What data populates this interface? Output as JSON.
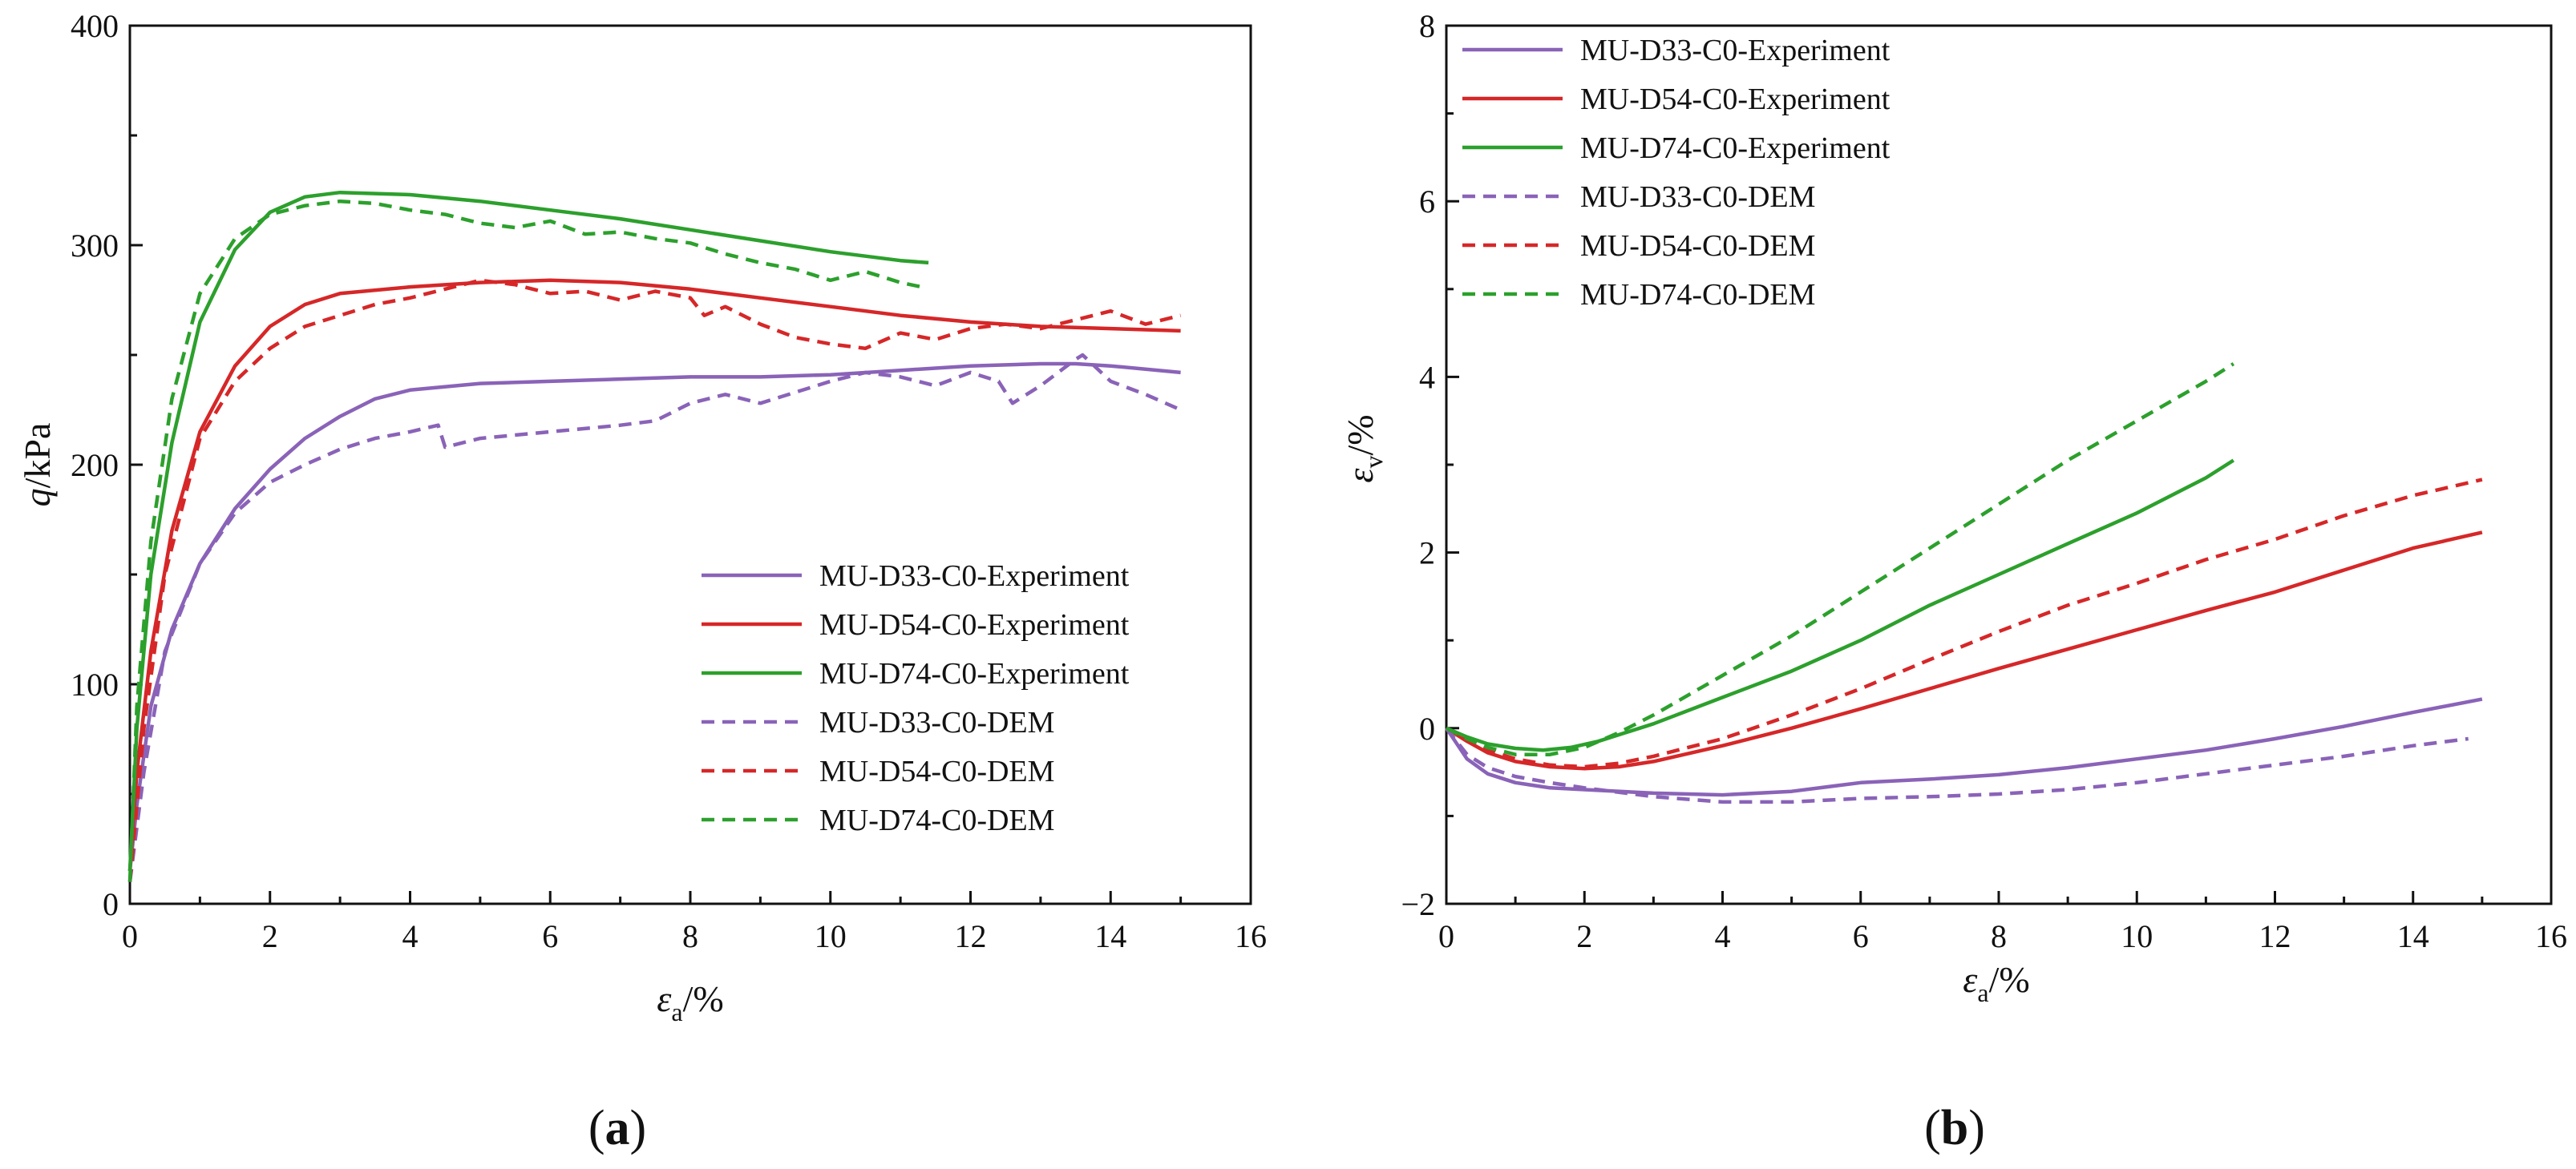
{
  "colors": {
    "D33": "#8a63b8",
    "D54": "#d62728",
    "D74": "#2ca02c",
    "axis": "#111111"
  },
  "chart_data": [
    {
      "panel": "a",
      "type": "line",
      "xlabel_symbol": "ε",
      "xlabel_sub": "a",
      "xlabel_unit": "/%",
      "ylabel_symbol": "q",
      "ylabel_unit": "/kPa",
      "xlim": [
        0,
        16
      ],
      "ylim": [
        0,
        400
      ],
      "xticks": [
        0,
        2,
        4,
        6,
        8,
        10,
        12,
        14,
        16
      ],
      "yticks": [
        0,
        100,
        200,
        300,
        400
      ],
      "grid": false,
      "legend_position": "bottom-right",
      "series": [
        {
          "name": "MU-D33-C0-Experiment",
          "group": "D33",
          "style": "solid",
          "x": [
            0,
            0.1,
            0.3,
            0.6,
            1.0,
            1.5,
            2.0,
            2.5,
            3.0,
            3.5,
            4.0,
            5.0,
            6.0,
            7.0,
            8.0,
            9.0,
            10.0,
            11.0,
            12.0,
            13.0,
            13.5,
            14.0,
            15.0
          ],
          "y": [
            15,
            45,
            90,
            125,
            155,
            180,
            198,
            212,
            222,
            230,
            234,
            237,
            238,
            239,
            240,
            240,
            241,
            243,
            245,
            246,
            246,
            245,
            242
          ]
        },
        {
          "name": "MU-D54-C0-Experiment",
          "group": "D54",
          "style": "solid",
          "x": [
            0,
            0.1,
            0.3,
            0.6,
            1.0,
            1.5,
            2.0,
            2.5,
            3.0,
            4.0,
            5.0,
            6.0,
            7.0,
            8.0,
            9.0,
            10.0,
            11.0,
            12.0,
            13.0,
            14.0,
            15.0
          ],
          "y": [
            15,
            60,
            115,
            170,
            215,
            245,
            263,
            273,
            278,
            281,
            283,
            284,
            283,
            280,
            276,
            272,
            268,
            265,
            263,
            262,
            261
          ]
        },
        {
          "name": "MU-D74-C0-Experiment",
          "group": "D74",
          "style": "solid",
          "x": [
            0,
            0.1,
            0.3,
            0.6,
            1.0,
            1.5,
            2.0,
            2.5,
            3.0,
            4.0,
            5.0,
            6.0,
            7.0,
            8.0,
            9.0,
            10.0,
            11.0,
            11.4
          ],
          "y": [
            15,
            80,
            150,
            210,
            265,
            298,
            315,
            322,
            324,
            323,
            320,
            316,
            312,
            307,
            302,
            297,
            293,
            292
          ]
        },
        {
          "name": "MU-D33-C0-DEM",
          "group": "D33",
          "style": "dashed",
          "x": [
            0,
            0.2,
            0.5,
            1.0,
            1.5,
            2.0,
            2.5,
            3.0,
            3.5,
            4.0,
            4.4,
            4.5,
            5.0,
            6.0,
            7.0,
            7.5,
            8.0,
            8.5,
            9.0,
            9.5,
            10.0,
            10.5,
            11.0,
            11.5,
            12.0,
            12.4,
            12.6,
            13.0,
            13.5,
            13.6,
            14.0,
            14.5,
            15.0
          ],
          "y": [
            10,
            60,
            115,
            155,
            178,
            192,
            200,
            207,
            212,
            215,
            218,
            208,
            212,
            215,
            218,
            220,
            228,
            232,
            228,
            233,
            238,
            242,
            240,
            236,
            242,
            238,
            228,
            236,
            248,
            250,
            238,
            232,
            225
          ]
        },
        {
          "name": "MU-D54-C0-DEM",
          "group": "D54",
          "style": "dashed",
          "x": [
            0,
            0.2,
            0.5,
            1.0,
            1.5,
            2.0,
            2.5,
            3.0,
            3.5,
            4.0,
            4.5,
            5.0,
            5.5,
            6.0,
            6.5,
            7.0,
            7.5,
            8.0,
            8.2,
            8.5,
            9.0,
            9.5,
            10.0,
            10.5,
            11.0,
            11.5,
            12.0,
            12.5,
            13.0,
            13.5,
            14.0,
            14.5,
            15.0
          ],
          "y": [
            10,
            80,
            150,
            212,
            238,
            253,
            263,
            268,
            273,
            276,
            280,
            284,
            282,
            278,
            279,
            275,
            279,
            276,
            268,
            272,
            264,
            258,
            255,
            253,
            260,
            257,
            262,
            264,
            262,
            266,
            270,
            264,
            268
          ]
        },
        {
          "name": "MU-D74-C0-DEM",
          "group": "D74",
          "style": "dashed",
          "x": [
            0,
            0.1,
            0.3,
            0.6,
            1.0,
            1.5,
            2.0,
            2.5,
            3.0,
            3.5,
            4.0,
            4.5,
            5.0,
            5.5,
            6.0,
            6.5,
            7.0,
            7.5,
            8.0,
            8.5,
            9.0,
            9.5,
            10.0,
            10.5,
            11.0,
            11.3
          ],
          "y": [
            10,
            90,
            165,
            230,
            278,
            303,
            314,
            318,
            320,
            319,
            316,
            314,
            310,
            308,
            311,
            305,
            306,
            303,
            301,
            296,
            292,
            289,
            284,
            288,
            283,
            281
          ]
        }
      ]
    },
    {
      "panel": "b",
      "type": "line",
      "xlabel_symbol": "ε",
      "xlabel_sub": "a",
      "xlabel_unit": "/%",
      "ylabel_symbol": "ε",
      "ylabel_sub": "v",
      "ylabel_unit": "/%",
      "xlim": [
        0,
        16
      ],
      "ylim": [
        -2,
        8
      ],
      "xticks": [
        0,
        2,
        4,
        6,
        8,
        10,
        12,
        14,
        16
      ],
      "yticks": [
        -2,
        0,
        2,
        4,
        6,
        8
      ],
      "ytick_labels": [
        "−2",
        "0",
        "2",
        "4",
        "6",
        "8"
      ],
      "grid": false,
      "legend_position": "top-left",
      "series": [
        {
          "name": "MU-D33-C0-Experiment",
          "group": "D33",
          "style": "solid",
          "x": [
            0,
            0.3,
            0.6,
            1.0,
            1.5,
            2.0,
            3.0,
            4.0,
            5.0,
            6.0,
            7.0,
            8.0,
            9.0,
            10.0,
            11.0,
            12.0,
            13.0,
            14.0,
            15.0
          ],
          "y": [
            0,
            -0.35,
            -0.52,
            -0.62,
            -0.68,
            -0.7,
            -0.74,
            -0.76,
            -0.72,
            -0.62,
            -0.58,
            -0.53,
            -0.45,
            -0.35,
            -0.25,
            -0.12,
            0.02,
            0.18,
            0.33
          ]
        },
        {
          "name": "MU-D54-C0-Experiment",
          "group": "D54",
          "style": "solid",
          "x": [
            0,
            0.3,
            0.6,
            1.0,
            1.5,
            2.0,
            2.5,
            3.0,
            4.0,
            5.0,
            6.0,
            7.0,
            8.0,
            9.0,
            10.0,
            11.0,
            12.0,
            13.0,
            14.0,
            15.0
          ],
          "y": [
            0,
            -0.15,
            -0.28,
            -0.38,
            -0.44,
            -0.46,
            -0.44,
            -0.38,
            -0.2,
            0.0,
            0.22,
            0.45,
            0.68,
            0.9,
            1.12,
            1.34,
            1.55,
            1.8,
            2.05,
            2.23
          ]
        },
        {
          "name": "MU-D74-C0-Experiment",
          "group": "D74",
          "style": "solid",
          "x": [
            0,
            0.3,
            0.6,
            1.0,
            1.4,
            1.8,
            2.2,
            3.0,
            4.0,
            5.0,
            6.0,
            7.0,
            8.0,
            9.0,
            10.0,
            11.0,
            11.4
          ],
          "y": [
            0,
            -0.1,
            -0.18,
            -0.23,
            -0.25,
            -0.22,
            -0.15,
            0.05,
            0.35,
            0.65,
            1.0,
            1.4,
            1.75,
            2.1,
            2.45,
            2.85,
            3.05
          ]
        },
        {
          "name": "MU-D33-C0-DEM",
          "group": "D33",
          "style": "dashed",
          "x": [
            0,
            0.3,
            0.6,
            1.0,
            1.5,
            2.0,
            3.0,
            4.0,
            5.0,
            6.0,
            7.0,
            8.0,
            9.0,
            10.0,
            11.0,
            12.0,
            13.0,
            14.0,
            14.8
          ],
          "y": [
            0,
            -0.3,
            -0.45,
            -0.55,
            -0.62,
            -0.68,
            -0.78,
            -0.84,
            -0.84,
            -0.8,
            -0.78,
            -0.75,
            -0.7,
            -0.62,
            -0.52,
            -0.42,
            -0.32,
            -0.2,
            -0.12
          ]
        },
        {
          "name": "MU-D54-C0-DEM",
          "group": "D54",
          "style": "dashed",
          "x": [
            0,
            0.3,
            0.6,
            1.0,
            1.5,
            2.0,
            2.5,
            3.0,
            4.0,
            5.0,
            6.0,
            7.0,
            8.0,
            9.0,
            10.0,
            11.0,
            12.0,
            13.0,
            14.0,
            15.0
          ],
          "y": [
            0,
            -0.12,
            -0.25,
            -0.35,
            -0.42,
            -0.44,
            -0.4,
            -0.32,
            -0.12,
            0.15,
            0.45,
            0.78,
            1.1,
            1.4,
            1.65,
            1.92,
            2.15,
            2.42,
            2.65,
            2.83
          ]
        },
        {
          "name": "MU-D74-C0-DEM",
          "group": "D74",
          "style": "dashed",
          "x": [
            0,
            0.3,
            0.6,
            1.0,
            1.5,
            2.0,
            2.5,
            3.0,
            4.0,
            5.0,
            6.0,
            7.0,
            8.0,
            9.0,
            10.0,
            11.0,
            11.4
          ],
          "y": [
            0,
            -0.12,
            -0.22,
            -0.3,
            -0.3,
            -0.22,
            -0.05,
            0.15,
            0.6,
            1.05,
            1.55,
            2.05,
            2.55,
            3.05,
            3.5,
            3.95,
            4.15
          ]
        }
      ]
    }
  ]
}
